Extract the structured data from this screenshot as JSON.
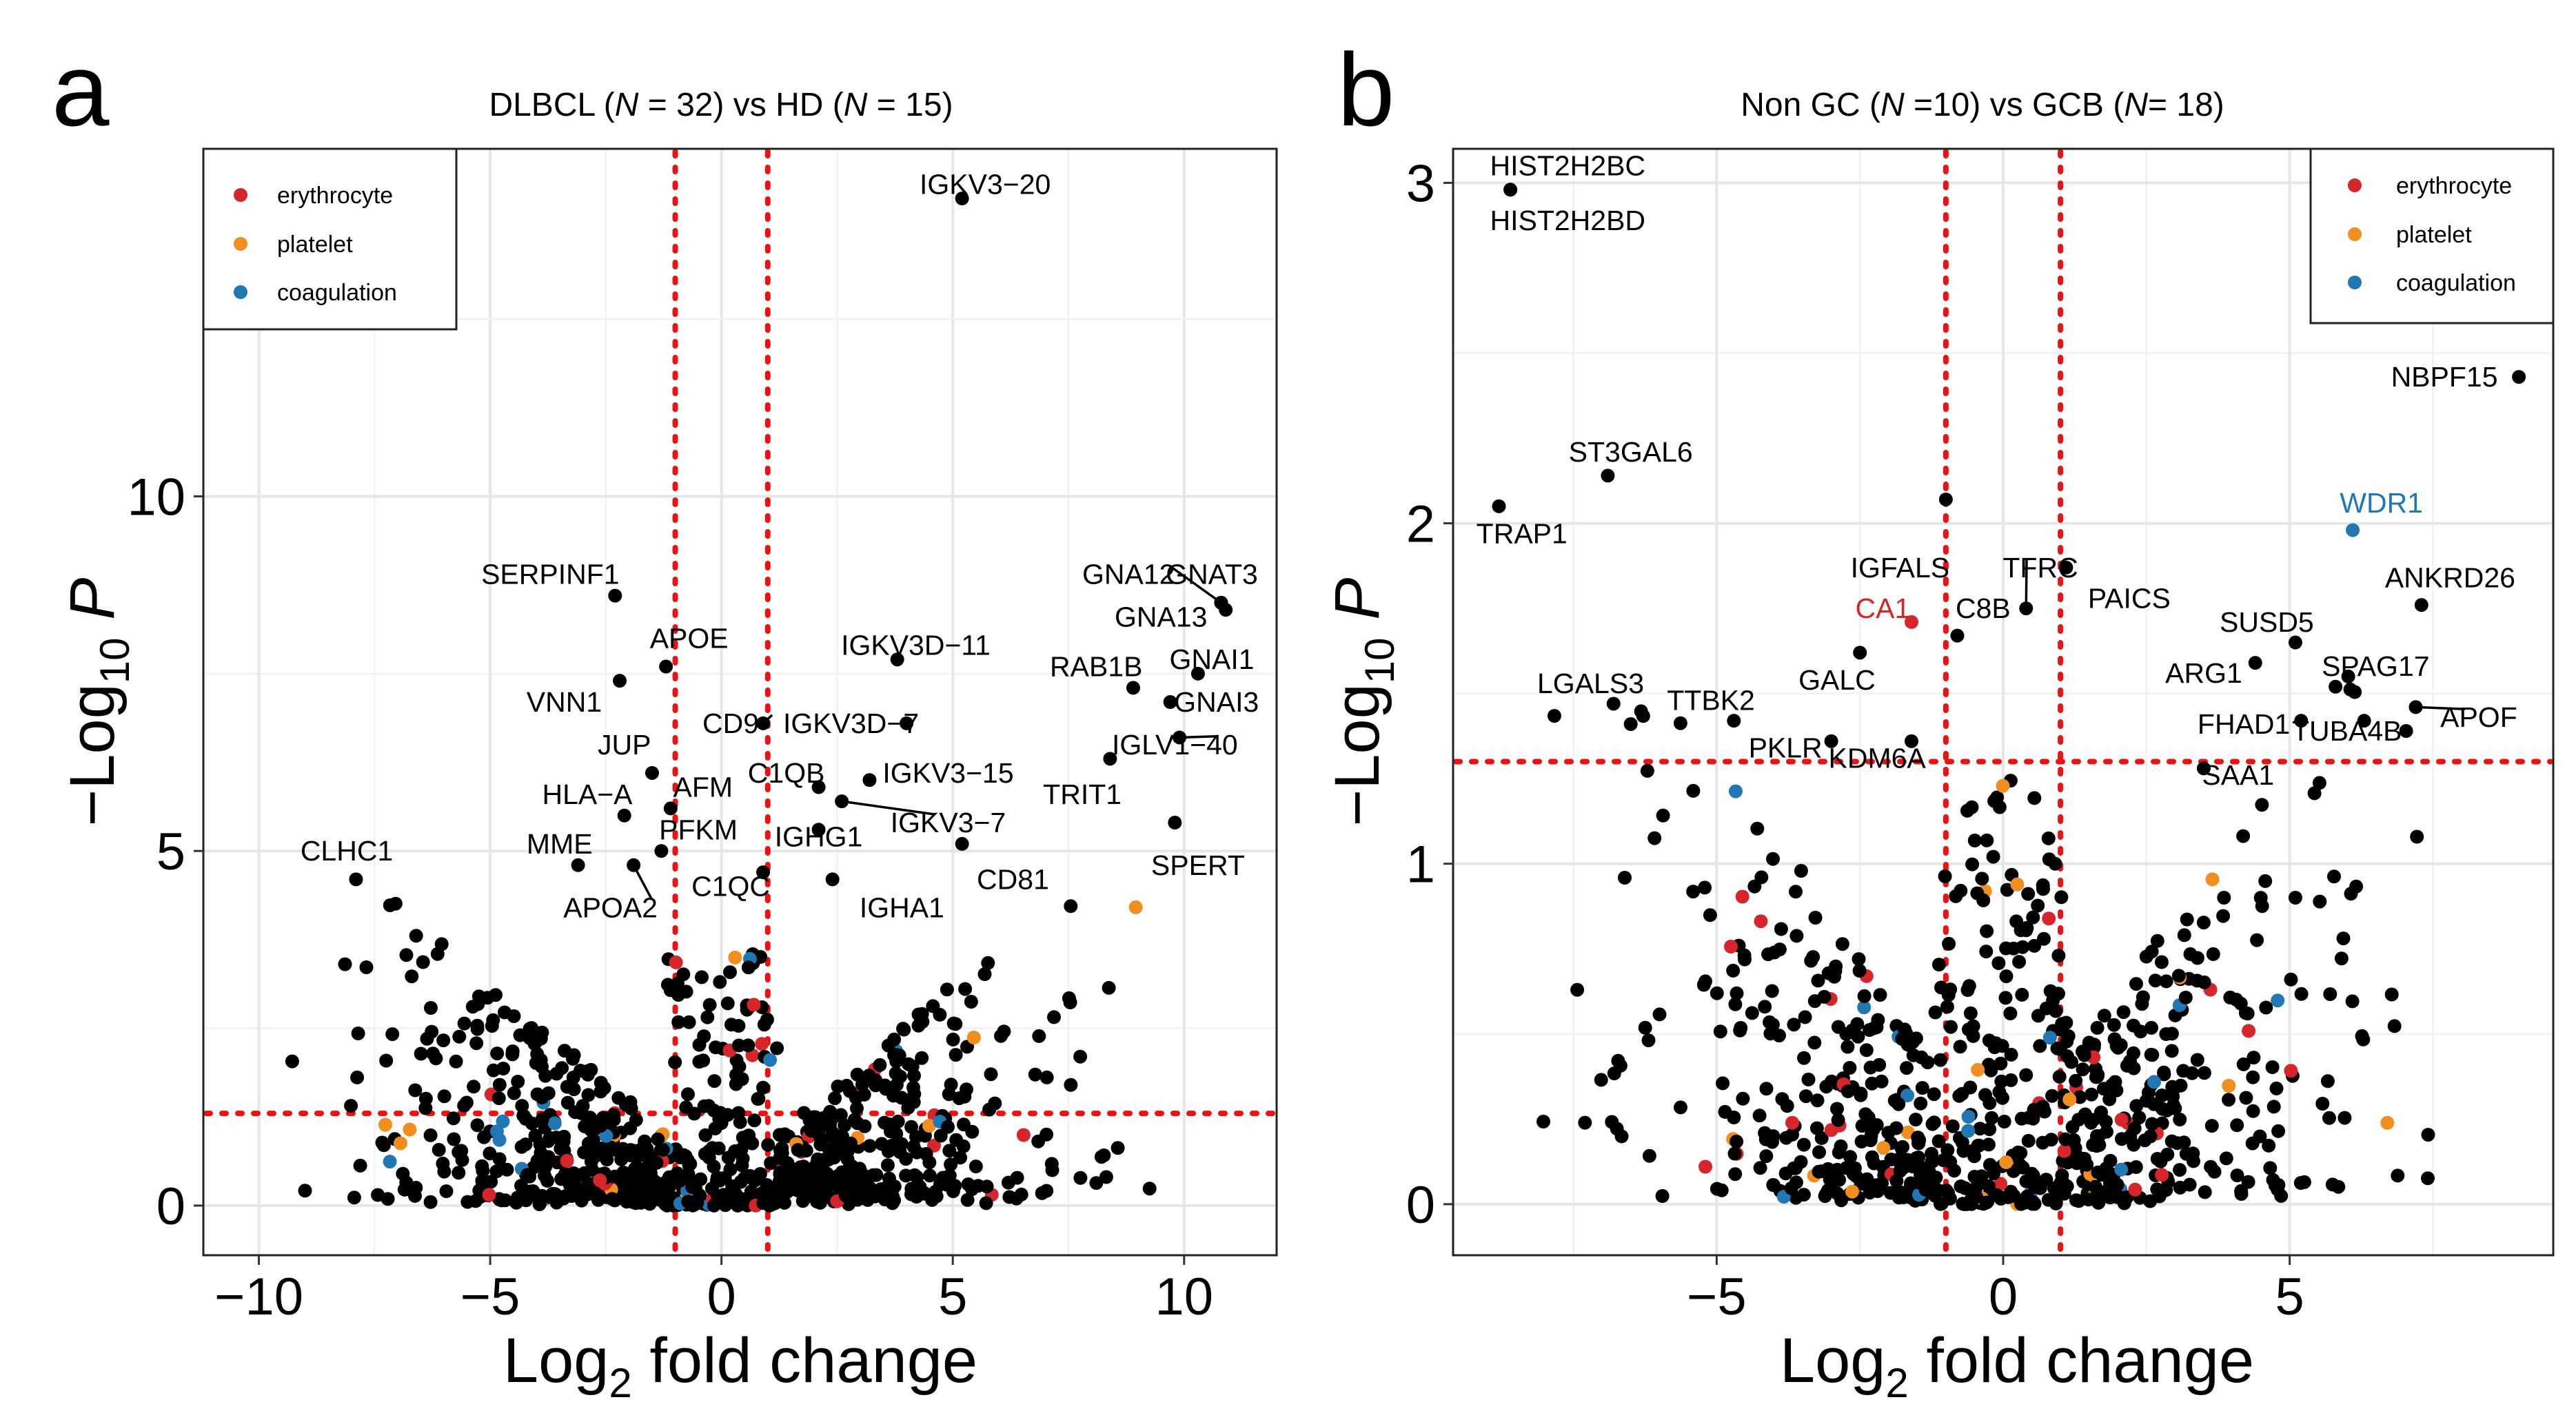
{
  "colors": {
    "background": "#ffffff",
    "point_default": "#000000",
    "erythrocyte": "#d7262b",
    "platelet": "#f28e1f",
    "coagulation": "#1f77b4",
    "cutoff_line": "#ee1111",
    "grid": "#e6e6e6"
  },
  "chart_data": [
    {
      "type": "scatter",
      "panel_label": "a",
      "title": {
        "pre": "DLBCL (",
        "n1_sym": "N",
        "n1_val": " = 32) vs HD (",
        "n2_sym": "N",
        "n2_val": " = 15)"
      },
      "xlabel": {
        "base": "Log",
        "sub": "2",
        "rest": " fold change"
      },
      "ylabel": {
        "pre": "−Log",
        "sub": "10",
        "sym": " P"
      },
      "xlim": [
        -11.2,
        12.0
      ],
      "ylim": [
        -0.7,
        14.9
      ],
      "xticks": [
        -10,
        -5,
        0,
        5,
        10
      ],
      "xtick_labels": [
        "−10",
        "−5",
        "0",
        "5",
        "10"
      ],
      "yticks": [
        0,
        5,
        10
      ],
      "ytick_labels": [
        "0",
        "5",
        "10"
      ],
      "fc_cutoffs": [
        -1,
        1
      ],
      "p_cutoff": 1.3,
      "legend": {
        "position": "top-left",
        "entries": [
          "erythrocyte",
          "platelet",
          "coagulation"
        ]
      },
      "labeled_points": [
        {
          "gene": "IGKV3-20",
          "x": 5.2,
          "y": 14.2,
          "group": "none",
          "label": "IGKV3−20",
          "lx": 5.7,
          "ly": 14.4
        },
        {
          "gene": "GNA12",
          "x": 10.8,
          "y": 8.5,
          "group": "none",
          "label": "GNA12",
          "lx": 8.8,
          "ly": 8.9,
          "leader": true
        },
        {
          "gene": "GNAT3",
          "x": 10.8,
          "y": 8.5,
          "group": "none",
          "label": "GNAT3",
          "lx": 10.6,
          "ly": 8.9
        },
        {
          "gene": "GNA13",
          "x": 10.9,
          "y": 8.4,
          "group": "none",
          "label": "GNA13",
          "lx": 9.5,
          "ly": 8.3
        },
        {
          "gene": "GNAI1",
          "x": 10.3,
          "y": 7.5,
          "group": "none",
          "label": "GNAI1",
          "lx": 10.6,
          "ly": 7.7
        },
        {
          "gene": "RAB1B",
          "x": 8.9,
          "y": 7.3,
          "group": "none",
          "label": "RAB1B",
          "lx": 8.1,
          "ly": 7.6
        },
        {
          "gene": "GNAI3",
          "x": 9.7,
          "y": 7.1,
          "group": "none",
          "label": "GNAI3",
          "lx": 10.7,
          "ly": 7.1
        },
        {
          "gene": "IGLV1-40",
          "x": 9.9,
          "y": 6.6,
          "group": "none",
          "label": "IGLV1−40",
          "lx": 9.8,
          "ly": 6.5,
          "leader": true
        },
        {
          "gene": "TRIT1",
          "x": 8.4,
          "y": 6.3,
          "group": "none",
          "label": "TRIT1",
          "lx": 7.8,
          "ly": 5.8
        },
        {
          "gene": "SPERT",
          "x": 9.8,
          "y": 5.4,
          "group": "none",
          "label": "SPERT",
          "lx": 10.3,
          "ly": 4.8
        },
        {
          "gene": "SERPINF1",
          "x": -2.3,
          "y": 8.6,
          "group": "none",
          "label": "SERPINF1",
          "lx": -3.7,
          "ly": 8.9
        },
        {
          "gene": "APOE",
          "x": -1.2,
          "y": 7.6,
          "group": "none",
          "label": "APOE",
          "lx": -0.7,
          "ly": 8.0
        },
        {
          "gene": "VNN1",
          "x": -2.2,
          "y": 7.4,
          "group": "none",
          "label": "VNN1",
          "lx": -3.4,
          "ly": 7.1
        },
        {
          "gene": "JUP",
          "x": -1.5,
          "y": 6.1,
          "group": "none",
          "label": "JUP",
          "lx": -2.1,
          "ly": 6.5
        },
        {
          "gene": "HLA-A",
          "x": -2.1,
          "y": 5.5,
          "group": "none",
          "label": "HLA−A",
          "lx": -2.9,
          "ly": 5.8
        },
        {
          "gene": "AFM",
          "x": -1.1,
          "y": 5.6,
          "group": "none",
          "label": "AFM",
          "lx": -0.4,
          "ly": 5.9
        },
        {
          "gene": "PFKM",
          "x": -1.3,
          "y": 5.0,
          "group": "none",
          "label": "PFKM",
          "lx": -0.5,
          "ly": 5.3
        },
        {
          "gene": "MME",
          "x": -3.1,
          "y": 4.8,
          "group": "none",
          "label": "MME",
          "lx": -3.5,
          "ly": 5.1
        },
        {
          "gene": "APOA2",
          "x": -1.9,
          "y": 4.8,
          "group": "none",
          "label": "APOA2",
          "lx": -2.4,
          "ly": 4.2,
          "leader": true
        },
        {
          "gene": "C1QC",
          "x": 0.9,
          "y": 4.7,
          "group": "none",
          "label": "C1QC",
          "lx": 0.2,
          "ly": 4.5
        },
        {
          "gene": "CLHC1",
          "x": -7.9,
          "y": 4.6,
          "group": "none",
          "label": "CLHC1",
          "lx": -8.1,
          "ly": 5.0
        },
        {
          "gene": "CD9",
          "x": 0.9,
          "y": 6.8,
          "group": "none",
          "label": "CD9",
          "lx": 0.2,
          "ly": 6.8,
          "leader": true
        },
        {
          "gene": "IGKV3D-7",
          "x": 4.0,
          "y": 6.8,
          "group": "none",
          "label": "IGKV3D−7",
          "lx": 2.8,
          "ly": 6.8
        },
        {
          "gene": "IGKV3D-11",
          "x": 3.8,
          "y": 7.7,
          "group": "none",
          "label": "IGKV3D−11",
          "lx": 4.2,
          "ly": 7.9
        },
        {
          "gene": "C1QB",
          "x": 2.1,
          "y": 5.9,
          "group": "none",
          "label": "C1QB",
          "lx": 1.4,
          "ly": 6.1
        },
        {
          "gene": "IGKV3-15",
          "x": 3.2,
          "y": 6.0,
          "group": "none",
          "label": "IGKV3−15",
          "lx": 4.9,
          "ly": 6.1
        },
        {
          "gene": "IGKV3-7",
          "x": 2.6,
          "y": 5.7,
          "group": "none",
          "label": "IGKV3−7",
          "lx": 4.9,
          "ly": 5.4,
          "leader": true
        },
        {
          "gene": "IGHG1",
          "x": 2.1,
          "y": 5.3,
          "group": "none",
          "label": "IGHG1",
          "lx": 2.1,
          "ly": 5.2
        },
        {
          "gene": "CD81",
          "x": 5.2,
          "y": 5.1,
          "group": "none",
          "label": "CD81",
          "lx": 6.3,
          "ly": 4.6
        },
        {
          "gene": "IGHA1",
          "x": 2.4,
          "y": 4.6,
          "group": "none",
          "label": "IGHA1",
          "lx": 3.9,
          "ly": 4.2
        }
      ]
    },
    {
      "type": "scatter",
      "panel_label": "b",
      "title": {
        "pre": "Non GC (",
        "n1_sym": "N",
        "n1_val": " =10) vs GCB (",
        "n2_sym": "N",
        "n2_val": "= 18)"
      },
      "xlabel": {
        "base": "Log",
        "sub": "2",
        "rest": " fold change"
      },
      "ylabel": {
        "pre": "−Log",
        "sub": "10",
        "sym": " P"
      },
      "xlim": [
        -9.6,
        9.6
      ],
      "ylim": [
        -0.15,
        3.1
      ],
      "xticks": [
        -5,
        0,
        5
      ],
      "xtick_labels": [
        "−5",
        "0",
        "5"
      ],
      "yticks": [
        0,
        1,
        2,
        3
      ],
      "ytick_labels": [
        "0",
        "1",
        "2",
        "3"
      ],
      "fc_cutoffs": [
        -1,
        1
      ],
      "p_cutoff": 1.3,
      "legend": {
        "position": "top-right",
        "entries": [
          "erythrocyte",
          "platelet",
          "coagulation"
        ]
      },
      "labeled_points": [
        {
          "gene": "HIST2H2BC",
          "x": -8.6,
          "y": 2.98,
          "group": "none",
          "label": "HIST2H2BC",
          "lx": -7.6,
          "ly": 3.05
        },
        {
          "gene": "HIST2H2BD",
          "x": -8.6,
          "y": 2.98,
          "group": "none",
          "label": "HIST2H2BD",
          "lx": -7.6,
          "ly": 2.89
        },
        {
          "gene": "ST3GAL6",
          "x": -6.9,
          "y": 2.14,
          "group": "none",
          "label": "ST3GAL6",
          "lx": -6.5,
          "ly": 2.21
        },
        {
          "gene": "TRAP1",
          "x": -8.8,
          "y": 2.05,
          "group": "none",
          "label": "TRAP1",
          "lx": -8.4,
          "ly": 1.97
        },
        {
          "gene": "NBPF15",
          "x": 9.0,
          "y": 2.43,
          "group": "none",
          "label": "NBPF15",
          "lx": 7.7,
          "ly": 2.43
        },
        {
          "gene": "WDR1",
          "x": 6.1,
          "y": 1.98,
          "group": "coagulation",
          "label": "WDR1",
          "lx": 6.6,
          "ly": 2.06
        },
        {
          "gene": "IGFALS",
          "x": -1.0,
          "y": 2.07,
          "group": "none",
          "label": "IGFALS",
          "lx": -1.8,
          "ly": 1.87
        },
        {
          "gene": "TFRC",
          "x": 0.4,
          "y": 1.75,
          "group": "none",
          "label": "TFRC",
          "lx": 0.65,
          "ly": 1.87,
          "leader": true
        },
        {
          "gene": "CA1",
          "x": -1.6,
          "y": 1.71,
          "group": "erythrocyte",
          "label": "CA1",
          "lx": -2.1,
          "ly": 1.75
        },
        {
          "gene": "C8B",
          "x": -0.8,
          "y": 1.67,
          "group": "none",
          "label": "C8B",
          "lx": -0.35,
          "ly": 1.75
        },
        {
          "gene": "PAICS",
          "x": 1.1,
          "y": 1.87,
          "group": "none",
          "label": "PAICS",
          "lx": 2.2,
          "ly": 1.78
        },
        {
          "gene": "ANKRD26",
          "x": 7.3,
          "y": 1.76,
          "group": "none",
          "label": "ANKRD26",
          "lx": 7.8,
          "ly": 1.84
        },
        {
          "gene": "SUSD5",
          "x": 5.1,
          "y": 1.65,
          "group": "none",
          "label": "SUSD5",
          "lx": 4.6,
          "ly": 1.71
        },
        {
          "gene": "ARG1",
          "x": 4.4,
          "y": 1.59,
          "group": "none",
          "label": "ARG1",
          "lx": 3.5,
          "ly": 1.56
        },
        {
          "gene": "SPAG17",
          "x": 5.8,
          "y": 1.52,
          "group": "none",
          "label": "SPAG17",
          "lx": 6.5,
          "ly": 1.58
        },
        {
          "gene": "APOF",
          "x": 7.2,
          "y": 1.46,
          "group": "none",
          "label": "APOF",
          "lx": 8.3,
          "ly": 1.43,
          "leader": true
        },
        {
          "gene": "FHAD1",
          "x": 5.2,
          "y": 1.42,
          "group": "none",
          "label": "FHAD1",
          "lx": 4.2,
          "ly": 1.41
        },
        {
          "gene": "TUBA4B",
          "x": 6.3,
          "y": 1.42,
          "group": "none",
          "label": "TUBA4B",
          "lx": 6.0,
          "ly": 1.39
        },
        {
          "gene": "SAA1",
          "x": 3.5,
          "y": 1.28,
          "group": "none",
          "label": "SAA1",
          "lx": 4.1,
          "ly": 1.26
        },
        {
          "gene": "LGALS3",
          "x": -6.8,
          "y": 1.47,
          "group": "none",
          "label": "LGALS3",
          "lx": -7.2,
          "ly": 1.53
        },
        {
          "gene": "TTBK2",
          "x": -4.7,
          "y": 1.42,
          "group": "none",
          "label": "TTBK2",
          "lx": -5.1,
          "ly": 1.48
        },
        {
          "gene": "GALC",
          "x": -2.5,
          "y": 1.62,
          "group": "none",
          "label": "GALC",
          "lx": -2.9,
          "ly": 1.54
        },
        {
          "gene": "PKLR",
          "x": -3.0,
          "y": 1.36,
          "group": "none",
          "label": "PKLR",
          "lx": -3.8,
          "ly": 1.34
        },
        {
          "gene": "KDM6A",
          "x": -1.6,
          "y": 1.36,
          "group": "none",
          "label": "KDM6A",
          "lx": -2.2,
          "ly": 1.31
        }
      ]
    }
  ]
}
